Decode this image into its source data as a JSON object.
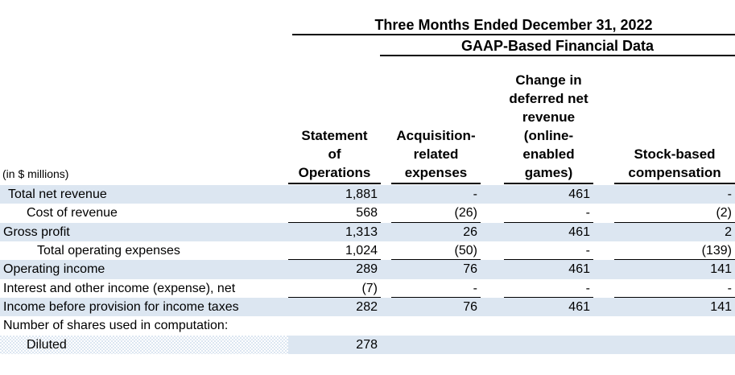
{
  "chart_data": {
    "type": "table",
    "title": "Three Months Ended December 31, 2022",
    "subtitle": "GAAP-Based Financial Data",
    "unit_label": "(in $ millions)",
    "columns": [
      "Statement of Operations",
      "Acquisition-related expenses",
      "Change in deferred net revenue (online-enabled games)",
      "Stock-based compensation"
    ],
    "rows": [
      {
        "label": "Total net revenue",
        "indent": 1,
        "values": [
          "1,881",
          "-",
          "461",
          "-"
        ],
        "shaded": true,
        "underline": false,
        "pattern": false
      },
      {
        "label": "Cost of revenue",
        "indent": 2,
        "values": [
          "568",
          "(26)",
          "-",
          "(2)"
        ],
        "shaded": false,
        "underline": true,
        "pattern": false
      },
      {
        "label": "Gross profit",
        "indent": 0,
        "values": [
          "1,313",
          "26",
          "461",
          "2"
        ],
        "shaded": true,
        "underline": false,
        "pattern": false
      },
      {
        "label": "Total operating expenses",
        "indent": 3,
        "values": [
          "1,024",
          "(50)",
          "-",
          "(139)"
        ],
        "shaded": false,
        "underline": true,
        "pattern": false
      },
      {
        "label": "Operating income",
        "indent": 0,
        "values": [
          "289",
          "76",
          "461",
          "141"
        ],
        "shaded": true,
        "underline": false,
        "pattern": false
      },
      {
        "label": "Interest and other income (expense), net",
        "indent": 0,
        "values": [
          "(7)",
          "-",
          "-",
          "-"
        ],
        "shaded": false,
        "underline": true,
        "pattern": false
      },
      {
        "label": "Income before provision for income taxes",
        "indent": 0,
        "values": [
          "282",
          "76",
          "461",
          "141"
        ],
        "shaded": true,
        "underline": false,
        "pattern": false
      },
      {
        "label": "Number of shares used in computation:",
        "indent": 0,
        "values": [
          "",
          "",
          "",
          ""
        ],
        "shaded": false,
        "underline": false,
        "pattern": false
      },
      {
        "label": "Diluted",
        "indent": 2,
        "values": [
          "278",
          "",
          "",
          ""
        ],
        "shaded": true,
        "underline": false,
        "pattern": true
      }
    ]
  },
  "column_headers_wrapped": [
    "Statement\nof\nOperations",
    "Acquisition-\nrelated\nexpenses",
    "Change in\ndeferred net\nrevenue\n(online-\nenabled\ngames)",
    "Stock-based\ncompensation"
  ],
  "colors": {
    "row_shade": "#dce6f1",
    "rule": "#000000",
    "text": "#000000",
    "background": "#ffffff"
  }
}
